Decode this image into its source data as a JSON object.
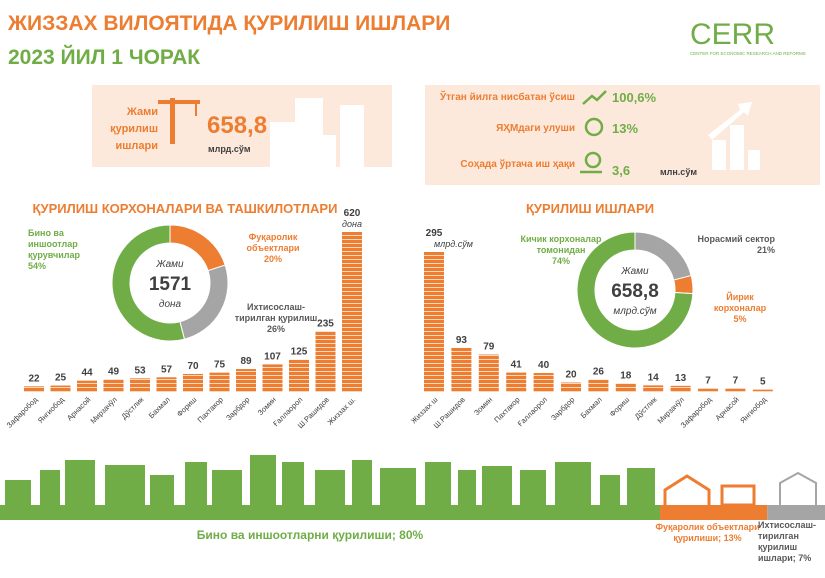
{
  "header": {
    "title": "ЖИЗЗАХ ВИЛОЯТИДА ҚУРИЛИШ ИШЛАРИ",
    "subtitle": "2023 ЙИЛ 1 ЧОРАК",
    "logo": "CERR",
    "logo_caption": "CENTER FOR ECONOMIC RESEARCH AND REFORMS"
  },
  "summary": {
    "label": "Жами қурилиш ишлари",
    "value": "658,8",
    "unit": "млрд.сўм"
  },
  "indicators": [
    {
      "label": "Ўтган йилга нисбатан ўсиш",
      "value": "100,6%"
    },
    {
      "label": "ЯҲМдаги улуши",
      "value": "13%"
    },
    {
      "label": "Соҳада ўртача иш ҳақи",
      "value": "3,6",
      "unit": "млн.сўм"
    }
  ],
  "sections": [
    "ҚУРИЛИШ КОРХОНАЛАРИ ВА ТАШКИЛОТЛАРИ",
    "ҚУРИЛИШ ИШЛАРИ"
  ],
  "chart_data": [
    {
      "type": "donut",
      "center": [
        "Жами",
        "1571",
        "дона"
      ],
      "categories": [
        "Фуқаролик объектлари",
        "Ихтисослаш-тирилган қурилиш",
        "Бино ва иншоотлар қурувчилар"
      ],
      "values": [
        20,
        26,
        54
      ],
      "value_labels": [
        "20%",
        "26%",
        "54%"
      ],
      "colors": [
        "#ed7d31",
        "#a5a5a5",
        "#70ad47"
      ]
    },
    {
      "type": "bar",
      "color": "#ed7d31",
      "unit": "дона",
      "categories": [
        "Зафаробод",
        "Янгиобод",
        "Арнасой",
        "Мирзачўл",
        "Дўстлик",
        "Бахмал",
        "Фориш",
        "Пахтакор",
        "Зарбдор",
        "Зомин",
        "Ғаллаорол",
        "Ш.Рашидов",
        "Жиззах ш."
      ],
      "values": [
        22,
        25,
        44,
        49,
        53,
        57,
        70,
        75,
        89,
        107,
        125,
        235,
        620
      ]
    },
    {
      "type": "donut",
      "center": [
        "Жами",
        "658,8",
        "млрд.сўм"
      ],
      "categories": [
        "Норасмий сектор",
        "Йирик корхоналар",
        "Кичик корхоналар томонидан"
      ],
      "values": [
        21,
        5,
        74
      ],
      "value_labels": [
        "21%",
        "5%",
        "74%"
      ],
      "colors": [
        "#a5a5a5",
        "#ed7d31",
        "#70ad47"
      ]
    },
    {
      "type": "bar",
      "color": "#ed7d31",
      "unit": "млрд.сўм",
      "categories": [
        "Жиззах ш",
        "Ш.Рашидов",
        "Зомин",
        "Пахтакор",
        "Ғаллаорол",
        "Зарбдор",
        "Бахмал",
        "Фориш",
        "Дўстлик",
        "Мирзачўл",
        "Зафаробод",
        "Арнасой",
        "Янгиобод"
      ],
      "values": [
        295,
        93,
        79,
        41,
        40,
        20,
        26,
        18,
        14,
        13,
        7,
        7,
        5
      ]
    },
    {
      "type": "stacked-bar",
      "values": [
        80,
        13,
        7
      ],
      "value_labels": [
        "Бино ва иншоотларни қурилиши; 80%",
        "Фуқаролик объектлари қурилиши; 13%",
        "Ихтисослаш-тирилган қурилиш ишлари; 7%"
      ],
      "colors": [
        "#70ad47",
        "#ed7d31",
        "#a5a5a5"
      ]
    }
  ]
}
